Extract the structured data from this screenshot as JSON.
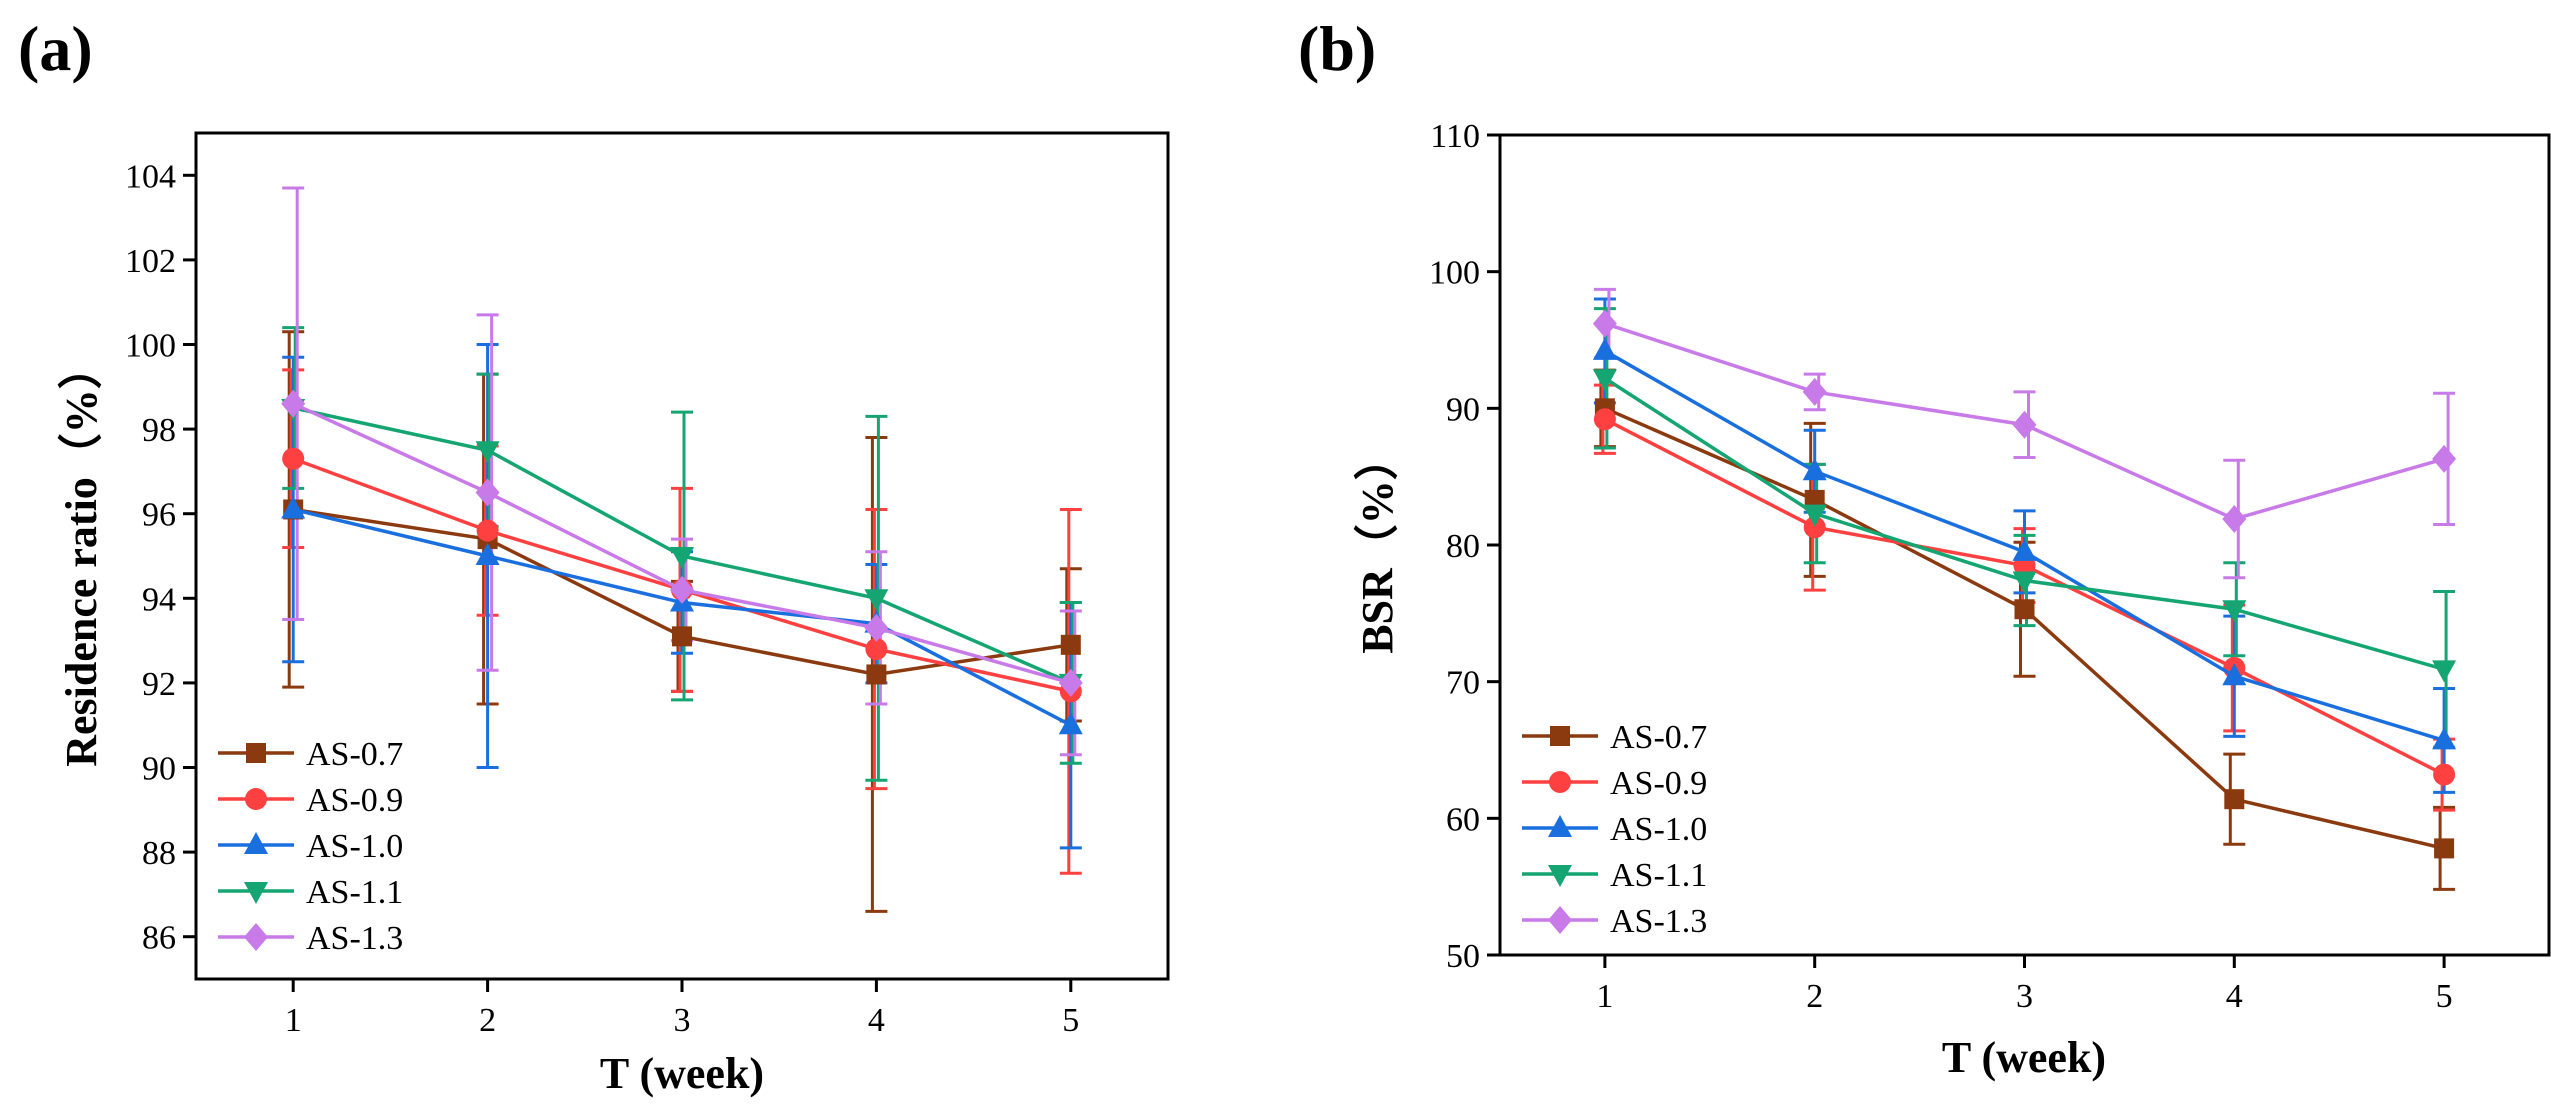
{
  "chart_data": [
    {
      "type": "line",
      "panel_label": "(a)",
      "xlabel": "T (week)",
      "ylabel": "Residence ratio（%）",
      "x": [
        1,
        2,
        3,
        4,
        5
      ],
      "x_tick_labels": [
        "1",
        "2",
        "3",
        "4",
        "5"
      ],
      "xlim": [
        0.5,
        5.5
      ],
      "ylim": [
        85,
        105
      ],
      "y_ticks": [
        86,
        88,
        90,
        92,
        94,
        96,
        98,
        100,
        102,
        104
      ],
      "y_tick_labels": [
        "86",
        "88",
        "90",
        "92",
        "94",
        "96",
        "98",
        "100",
        "102",
        "104"
      ],
      "grid": false,
      "legend_position": "bottom-left",
      "series": [
        {
          "name": "AS-0.7",
          "color": "#8B3A0F",
          "marker": "square",
          "values": [
            96.1,
            95.4,
            93.1,
            92.2,
            92.9
          ],
          "errors": [
            4.2,
            3.9,
            1.3,
            5.6,
            1.8
          ]
        },
        {
          "name": "AS-0.9",
          "color": "#FF4040",
          "marker": "circle",
          "values": [
            97.3,
            95.6,
            94.2,
            92.8,
            91.8
          ],
          "errors": [
            2.1,
            2.0,
            2.4,
            3.3,
            4.3
          ]
        },
        {
          "name": "AS-1.0",
          "color": "#1A6FDF",
          "marker": "triangle-up",
          "values": [
            96.1,
            95.0,
            93.9,
            93.4,
            91.0
          ],
          "errors": [
            3.6,
            5.0,
            1.2,
            1.4,
            2.9
          ]
        },
        {
          "name": "AS-1.1",
          "color": "#14A572",
          "marker": "triangle-down",
          "values": [
            98.5,
            97.5,
            95.0,
            94.0,
            92.0
          ],
          "errors": [
            1.9,
            1.8,
            3.4,
            4.3,
            1.9
          ]
        },
        {
          "name": "AS-1.3",
          "color": "#C87AE8",
          "marker": "diamond",
          "values": [
            98.6,
            96.5,
            94.2,
            93.3,
            92.0
          ],
          "errors": [
            5.1,
            4.2,
            1.2,
            1.8,
            1.7
          ]
        }
      ]
    },
    {
      "type": "line",
      "panel_label": "(b)",
      "xlabel": "T (week)",
      "ylabel": "BSR（%）",
      "x": [
        1,
        2,
        3,
        4,
        5
      ],
      "x_tick_labels": [
        "1",
        "2",
        "3",
        "4",
        "5"
      ],
      "xlim": [
        0.5,
        5.5
      ],
      "ylim": [
        50,
        110
      ],
      "y_ticks": [
        50,
        60,
        70,
        80,
        90,
        100,
        110
      ],
      "y_tick_labels": [
        "50",
        "60",
        "70",
        "80",
        "90",
        "100",
        "110"
      ],
      "grid": false,
      "legend_position": "bottom-left",
      "series": [
        {
          "name": "AS-0.7",
          "color": "#8B3A0F",
          "marker": "square",
          "values": [
            90.0,
            83.3,
            75.3,
            61.4,
            57.8
          ],
          "errors": [
            2.8,
            5.6,
            4.9,
            3.3,
            3.0
          ]
        },
        {
          "name": "AS-0.9",
          "color": "#FF4040",
          "marker": "circle",
          "values": [
            89.2,
            81.3,
            78.5,
            71.0,
            63.2
          ],
          "errors": [
            2.5,
            4.6,
            2.7,
            4.6,
            2.6
          ]
        },
        {
          "name": "AS-1.0",
          "color": "#1A6FDF",
          "marker": "triangle-up",
          "values": [
            94.2,
            85.4,
            79.5,
            70.4,
            65.7
          ],
          "errors": [
            3.8,
            3.0,
            3.0,
            4.4,
            3.8
          ]
        },
        {
          "name": "AS-1.1",
          "color": "#14A572",
          "marker": "triangle-down",
          "values": [
            92.2,
            82.3,
            77.4,
            75.3,
            70.9
          ],
          "errors": [
            5.1,
            3.6,
            3.3,
            3.4,
            5.7
          ]
        },
        {
          "name": "AS-1.3",
          "color": "#C87AE8",
          "marker": "diamond",
          "values": [
            96.2,
            91.2,
            88.8,
            81.9,
            86.3
          ],
          "errors": [
            2.5,
            1.3,
            2.4,
            4.3,
            4.8
          ]
        }
      ]
    }
  ]
}
